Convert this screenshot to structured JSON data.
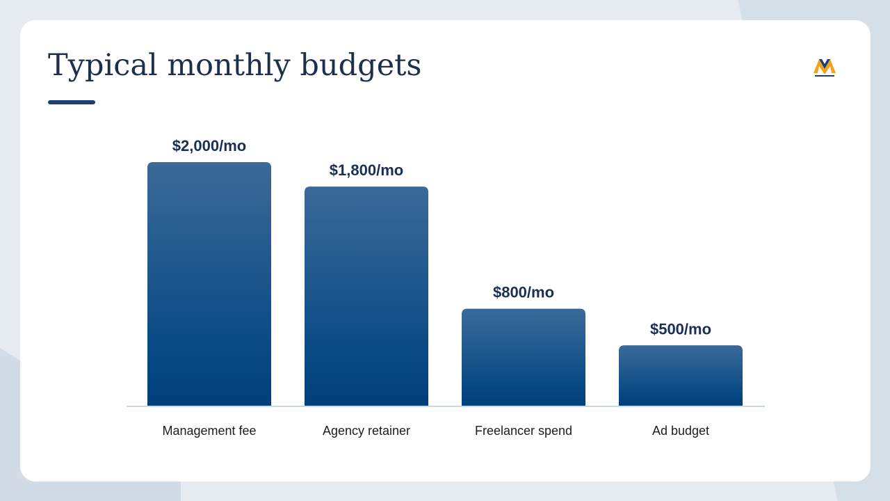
{
  "slide": {
    "title": "Typical monthly budgets",
    "accent_color": "#1b3f73",
    "logo": {
      "icon": "brand-logo-icon"
    }
  },
  "chart_data": {
    "type": "bar",
    "categories": [
      "Management fee",
      "Agency retainer",
      "Freelancer spend",
      "Ad budget"
    ],
    "values": [
      2000,
      1800,
      800,
      500
    ],
    "value_labels": [
      "$2,000/mo",
      "$1,800/mo",
      "$800/mo",
      "$500/mo"
    ],
    "title": "Typical monthly budgets",
    "xlabel": "",
    "ylabel": "",
    "ylim": [
      0,
      2000
    ],
    "grid": false,
    "bar_color_top": "#3b6a99",
    "bar_color_bottom": "#003f7a",
    "baseline_color": "#c9d8e6"
  }
}
